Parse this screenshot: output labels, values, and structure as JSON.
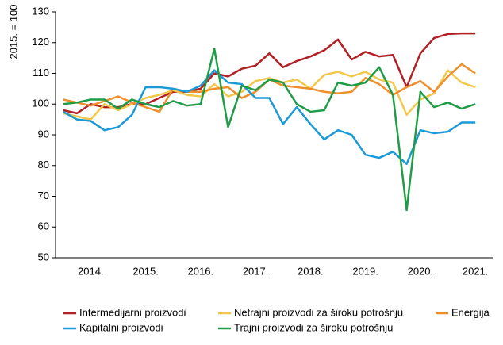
{
  "chart_data": {
    "type": "line",
    "y_label": "2015. = 100",
    "x": [
      2014,
      2014.25,
      2014.5,
      2014.75,
      2015,
      2015.25,
      2015.5,
      2015.75,
      2016,
      2016.25,
      2016.5,
      2016.75,
      2017,
      2017.25,
      2017.5,
      2017.75,
      2018,
      2018.25,
      2018.5,
      2018.75,
      2019,
      2019.25,
      2019.5,
      2019.75,
      2020,
      2020.25,
      2020.5,
      2020.75,
      2021,
      2021.25,
      2021.5
    ],
    "xlim": [
      2013.86,
      2021.83
    ],
    "xticks": [
      {
        "value": 2014.5,
        "label": "2014."
      },
      {
        "value": 2015.5,
        "label": "2015."
      },
      {
        "value": 2016.5,
        "label": "2016."
      },
      {
        "value": 2017.5,
        "label": "2017."
      },
      {
        "value": 2018.5,
        "label": "2018."
      },
      {
        "value": 2019.5,
        "label": "2019."
      },
      {
        "value": 2020.5,
        "label": "2020."
      },
      {
        "value": 2021.5,
        "label": "2021."
      }
    ],
    "ylim": [
      50,
      130
    ],
    "yticks": [
      50,
      60,
      70,
      80,
      90,
      100,
      110,
      120,
      130
    ],
    "series": [
      {
        "name": "Intermedijarni proizvodi",
        "color": "#b22025",
        "values": [
          98,
          97,
          100,
          99,
          99,
          100,
          100,
          102,
          104,
          104,
          105,
          110,
          109,
          111.5,
          112.5,
          116.5,
          112,
          114,
          115.5,
          117.5,
          121,
          114.5,
          117,
          115.5,
          116,
          105.5,
          116.5,
          121.5,
          122.8,
          123,
          123
        ]
      },
      {
        "name": "Netrajni proizvodi za široku potrošnju",
        "color": "#f2c84b",
        "values": [
          97,
          96,
          95,
          100,
          98,
          100,
          102,
          103,
          104.5,
          103,
          102.5,
          106.5,
          102.5,
          104,
          107.5,
          108.5,
          107,
          108,
          105,
          109.5,
          110.5,
          109,
          110.5,
          108,
          107,
          96.5,
          101.5,
          103.5,
          111,
          107,
          105.5
        ]
      },
      {
        "name": "Energija",
        "color": "#ee8f2b",
        "values": [
          101.5,
          100.5,
          99.5,
          101,
          102.5,
          100.5,
          99,
          97.5,
          105,
          104,
          104,
          105,
          105.5,
          102,
          104,
          108,
          106,
          105.5,
          105,
          104,
          103.5,
          104,
          108.5,
          106.5,
          103,
          105.5,
          107.5,
          104,
          109,
          113,
          110
        ]
      },
      {
        "name": "Kapitalni proizvodi",
        "color": "#1a9ad6",
        "values": [
          97.5,
          95,
          94.5,
          91.5,
          92.5,
          96.5,
          105.5,
          105.5,
          105,
          104,
          106,
          111,
          107,
          106.5,
          102,
          102,
          93.5,
          99,
          93.5,
          88.5,
          91.5,
          90,
          83.5,
          82.5,
          84.5,
          80.5,
          91.5,
          90.5,
          91,
          94,
          94
        ]
      },
      {
        "name": "Trajni proizvodi za široku potrošnju",
        "color": "#1f9c45",
        "values": [
          100,
          100.5,
          101.5,
          101.5,
          98.5,
          101.5,
          100,
          99,
          101,
          99.5,
          100,
          118,
          92.5,
          106,
          104.5,
          108,
          107,
          100,
          97.5,
          98,
          107,
          106,
          107,
          112,
          103,
          65.5,
          104,
          99,
          100.5,
          98.5,
          100
        ]
      }
    ]
  }
}
